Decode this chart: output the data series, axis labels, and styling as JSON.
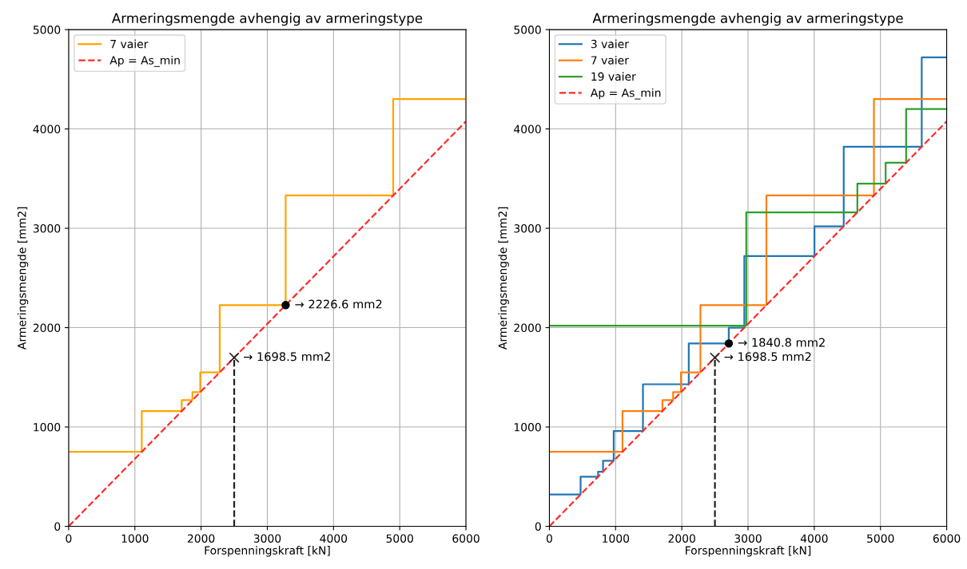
{
  "chart_data": [
    {
      "type": "step",
      "title": "Armeringsmengde avhengig av armeringstype",
      "xlabel": "Forspenningskraft [kN]",
      "ylabel": "Armeringsmengde [mm2]",
      "xlim": [
        0,
        6000
      ],
      "xticks": [
        0,
        1000,
        2000,
        3000,
        4000,
        5000,
        6000
      ],
      "ylim": [
        0,
        5000
      ],
      "yticks": [
        0,
        1000,
        2000,
        3000,
        4000,
        5000
      ],
      "grid": true,
      "legend": "top left",
      "series": [
        {
          "name": "7 vaier",
          "color": "#ffa500",
          "x": [
            0,
            1104,
            1707,
            1869,
            1987,
            2281,
            3277,
            4901,
            6000
          ],
          "values": [
            750,
            1160,
            1270,
            1350,
            1550,
            2226.6,
            3330,
            4300,
            4300
          ]
        },
        {
          "name": "Ap = As_min",
          "type": "line",
          "color": "#ff2b2b",
          "line_style": "dashed",
          "x": [
            0,
            6000
          ],
          "values": [
            0,
            4076.4
          ]
        },
        {
          "type": "line",
          "color": "#222222",
          "line_style": "dashed",
          "x": [
            2500,
            2500
          ],
          "values": [
            0,
            1698.5
          ]
        },
        {
          "type": "scatter",
          "marker": "cross",
          "color": "#222222",
          "x": [
            2500
          ],
          "values": [
            1698.5
          ]
        },
        {
          "type": "scatter",
          "marker": "circle",
          "color": "#000000",
          "x": [
            3277
          ],
          "values": [
            2226.6
          ]
        }
      ],
      "annotations": [
        {
          "text": "→ 2226.6 mm2",
          "x": 3277,
          "y": 2226.6
        },
        {
          "text": "→ 1698.5 mm2",
          "x": 2500,
          "y": 1698.5
        }
      ]
    },
    {
      "type": "step",
      "title": "Armeringsmengde avhengig av armeringstype",
      "xlabel": "Forspenningskraft [kN]",
      "ylabel": "Armeringsmengde [mm2]",
      "xlim": [
        0,
        6000
      ],
      "xticks": [
        0,
        1000,
        2000,
        3000,
        4000,
        5000,
        6000
      ],
      "ylim": [
        0,
        5000
      ],
      "yticks": [
        0,
        1000,
        2000,
        3000,
        4000,
        5000
      ],
      "grid": true,
      "legend": "top left",
      "series": [
        {
          "name": "3 vaier",
          "color": "#1f77b4",
          "x": [
            0,
            471,
            736,
            810,
            971,
            1413,
            2105,
            2709,
            2944,
            4003,
            4445,
            5623,
            6000
          ],
          "values": [
            320,
            500,
            550,
            660,
            960,
            1430,
            1840.8,
            2000,
            2720,
            3020,
            3820,
            4720,
            4720
          ]
        },
        {
          "name": "7 vaier",
          "color": "#ff7f0e",
          "x": [
            0,
            1104,
            1707,
            1869,
            1987,
            2281,
            3277,
            4901,
            6000
          ],
          "values": [
            750,
            1160,
            1270,
            1350,
            1550,
            2226.6,
            3330,
            4300,
            4300
          ]
        },
        {
          "name": "19 vaier",
          "color": "#2ca02c",
          "x": [
            0,
            2973,
            4651,
            5078,
            5387,
            6000
          ],
          "values": [
            2020,
            3160,
            3450,
            3660,
            4200,
            4200
          ]
        },
        {
          "name": "Ap = As_min",
          "type": "line",
          "color": "#ff2b2b",
          "line_style": "dashed",
          "x": [
            0,
            6000
          ],
          "values": [
            0,
            4076.4
          ]
        },
        {
          "type": "line",
          "color": "#222222",
          "line_style": "dashed",
          "x": [
            2500,
            2500
          ],
          "values": [
            0,
            1698.5
          ]
        },
        {
          "type": "scatter",
          "marker": "cross",
          "color": "#222222",
          "x": [
            2500
          ],
          "values": [
            1698.5
          ]
        },
        {
          "type": "scatter",
          "marker": "circle",
          "color": "#000000",
          "x": [
            2709.4
          ],
          "values": [
            1840.8
          ]
        }
      ],
      "annotations": [
        {
          "text": "→ 1840.8 mm2",
          "x": 2709.4,
          "y": 1840.8
        },
        {
          "text": "→ 1698.5 mm2",
          "x": 2500,
          "y": 1698.5
        }
      ]
    }
  ]
}
